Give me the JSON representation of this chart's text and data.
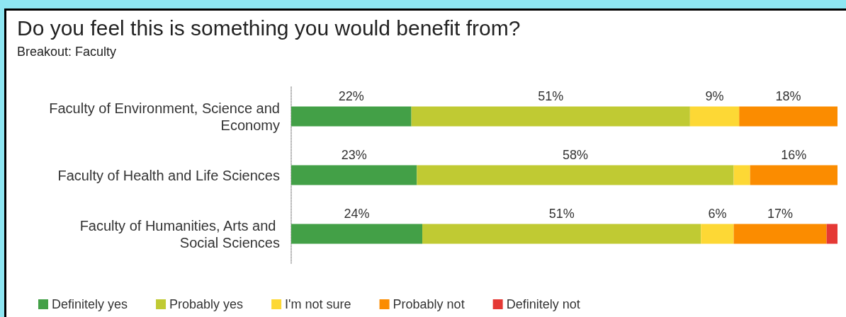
{
  "chart_data": {
    "type": "bar",
    "title": "Do you feel this is something you would benefit from?",
    "subtitle": "Breakout: Faculty",
    "orientation": "horizontal",
    "stacked": true,
    "categories": [
      "Faculty of Environment, Science and Economy",
      "Faculty of Health and Life Sciences",
      "Faculty of Humanities, Arts and Social Sciences"
    ],
    "series": [
      {
        "name": "Definitely yes",
        "color": "#43a047",
        "values": [
          22,
          23,
          24
        ],
        "value_labels": [
          "22%",
          "23%",
          "24%"
        ]
      },
      {
        "name": "Probably yes",
        "color": "#c0ca33",
        "values": [
          51,
          58,
          51
        ],
        "value_labels": [
          "51%",
          "58%",
          "51%"
        ]
      },
      {
        "name": "I'm not sure",
        "color": "#fdd835",
        "values": [
          9,
          3,
          6
        ],
        "value_labels": [
          "9%",
          null,
          "6%"
        ]
      },
      {
        "name": "Probably not",
        "color": "#fb8c00",
        "values": [
          18,
          16,
          17
        ],
        "value_labels": [
          "18%",
          "16%",
          "17%"
        ]
      },
      {
        "name": "Definitely not",
        "color": "#e53935",
        "values": [
          0,
          0,
          2
        ],
        "value_labels": [
          null,
          null,
          null
        ]
      }
    ],
    "tick_labels": "y",
    "grid": false,
    "legend": "bottom left"
  }
}
